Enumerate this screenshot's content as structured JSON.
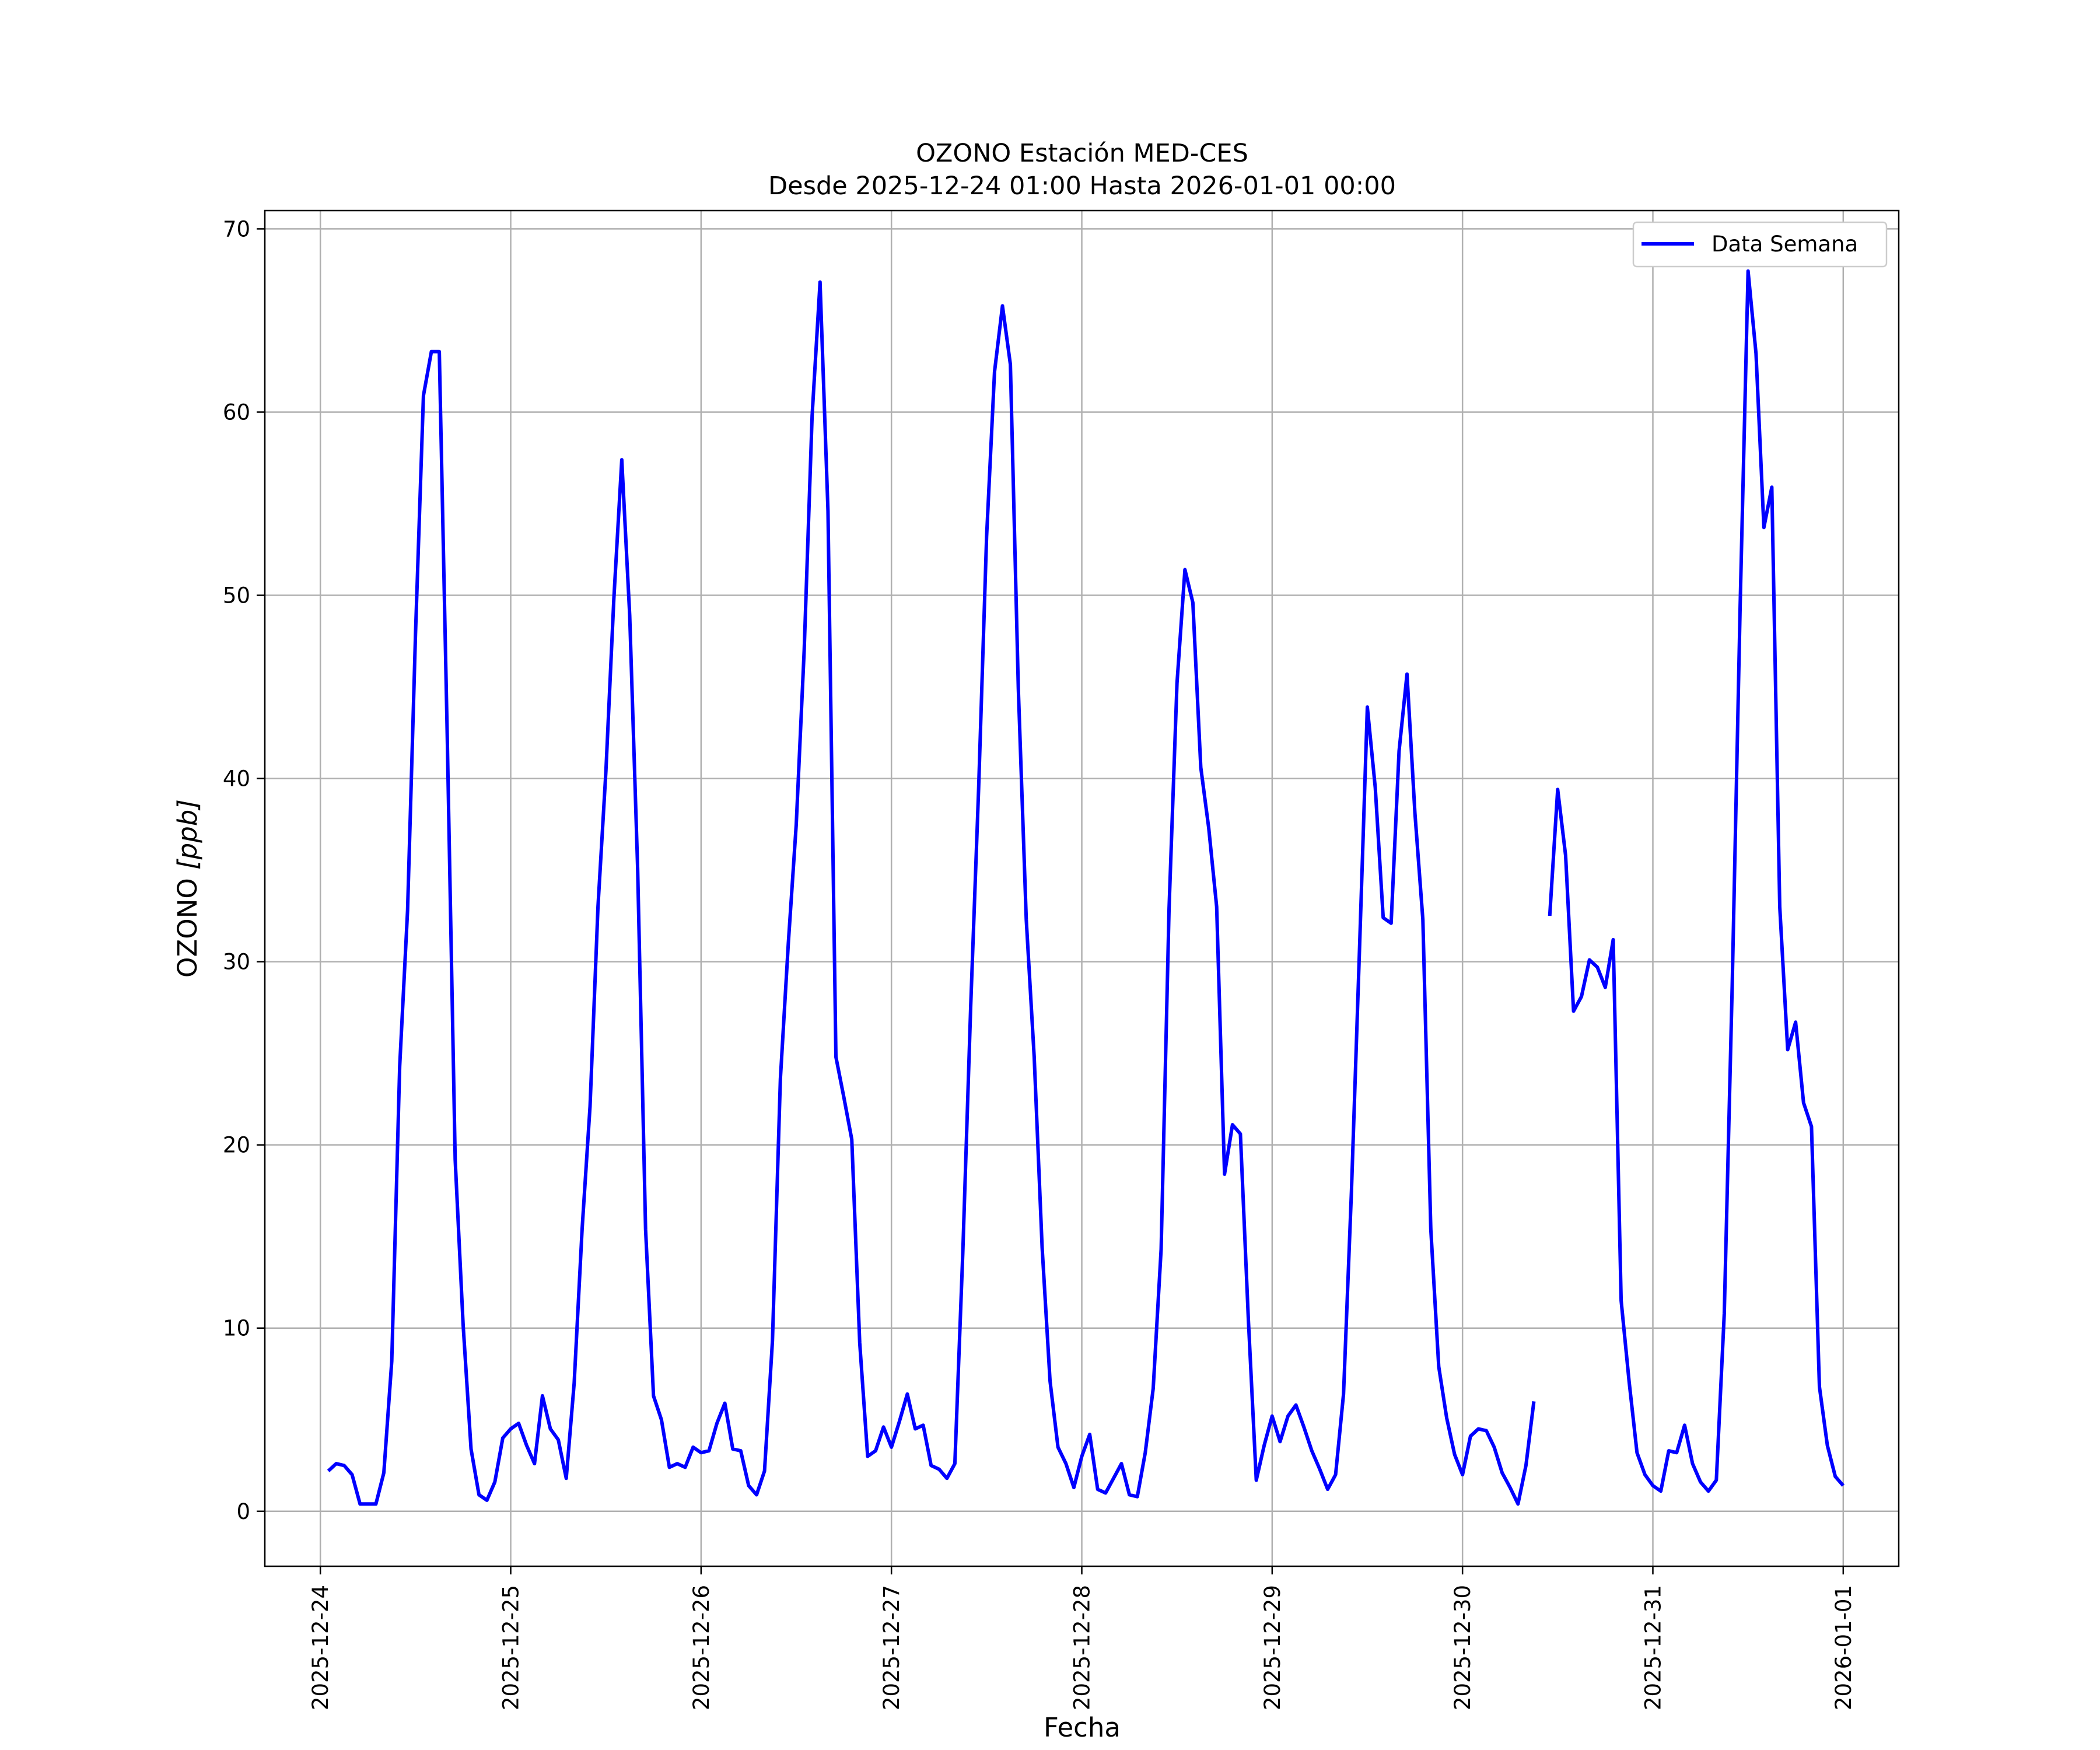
{
  "chart_data": {
    "type": "line",
    "title": "OZONO Estación MED-CES",
    "subtitle": "Desde 2025-12-24 01:00 Hasta 2026-01-01 00:00",
    "xlabel": "Fecha",
    "ylabel": "OZONO [ppb]",
    "ylabel_main": "OZONO ",
    "ylabel_unit": "[ppb]",
    "x_ticks": [
      "2025-12-24",
      "2025-12-25",
      "2025-12-26",
      "2025-12-27",
      "2025-12-28",
      "2025-12-29",
      "2025-12-30",
      "2025-12-31",
      "2026-01-01"
    ],
    "y_ticks": [
      "0",
      "10",
      "20",
      "30",
      "40",
      "50",
      "60",
      "70"
    ],
    "xlim": [
      "2025-12-23 17:00",
      "2026-01-01 07:00"
    ],
    "ylim": [
      -3,
      71
    ],
    "grid": true,
    "legend_position": "upper right",
    "series": [
      {
        "name": "Data Semana",
        "color": "#0000ff",
        "start": "2025-12-24 01:00",
        "interval_hours": 1,
        "values": [
          2.2,
          2.6,
          2.5,
          2.0,
          0.4,
          0.4,
          0.4,
          2.1,
          8.2,
          24.3,
          32.8,
          47.9,
          60.9,
          63.3,
          63.3,
          42.3,
          19.2,
          10.2,
          3.4,
          0.9,
          0.6,
          1.6,
          4.0,
          4.5,
          4.8,
          3.6,
          2.6,
          6.3,
          4.5,
          3.9,
          1.8,
          7.0,
          15.4,
          22.1,
          33.0,
          40.4,
          49.8,
          57.4,
          48.9,
          35.1,
          15.4,
          6.3,
          5.0,
          2.4,
          2.6,
          2.4,
          3.5,
          3.2,
          3.3,
          4.8,
          5.9,
          3.4,
          3.3,
          1.4,
          0.9,
          2.2,
          9.3,
          23.6,
          31.0,
          37.5,
          47.0,
          59.8,
          67.1,
          54.6,
          24.8,
          22.6,
          20.3,
          9.2,
          3.0,
          3.3,
          4.6,
          3.5,
          4.9,
          6.4,
          4.5,
          4.7,
          2.5,
          2.3,
          1.8,
          2.6,
          14.1,
          27.6,
          39.5,
          53.2,
          62.2,
          65.8,
          62.6,
          44.9,
          32.3,
          24.8,
          14.4,
          7.1,
          3.5,
          2.6,
          1.3,
          3.0,
          4.2,
          1.2,
          1.0,
          1.8,
          2.6,
          0.9,
          0.8,
          3.2,
          6.7,
          14.3,
          32.9,
          45.2,
          51.4,
          49.6,
          40.6,
          37.3,
          33.0,
          18.4,
          21.1,
          20.6,
          10.5,
          1.7,
          3.6,
          5.2,
          3.8,
          5.2,
          5.8,
          4.6,
          3.3,
          2.3,
          1.2,
          2.0,
          6.4,
          17.5,
          30.5,
          43.9,
          39.5,
          32.4,
          32.1,
          41.5,
          45.7,
          38.1,
          32.3,
          15.4,
          7.9,
          5.1,
          3.1,
          2.0,
          4.1,
          4.5,
          4.4,
          3.5,
          2.1,
          1.3,
          0.4,
          2.5,
          6.0,
          null,
          32.5,
          39.4,
          35.8,
          27.3,
          28.1,
          30.1,
          29.7,
          28.6,
          31.2,
          11.5,
          7.1,
          3.2,
          2.0,
          1.4,
          1.1,
          3.3,
          3.2,
          4.7,
          2.6,
          1.6,
          1.1,
          1.7,
          10.8,
          28.7,
          49.4,
          67.7,
          63.2,
          53.7,
          55.9,
          33.0,
          25.2,
          26.7,
          22.3,
          21.0,
          6.8,
          3.6,
          1.9,
          1.4
        ]
      }
    ]
  }
}
